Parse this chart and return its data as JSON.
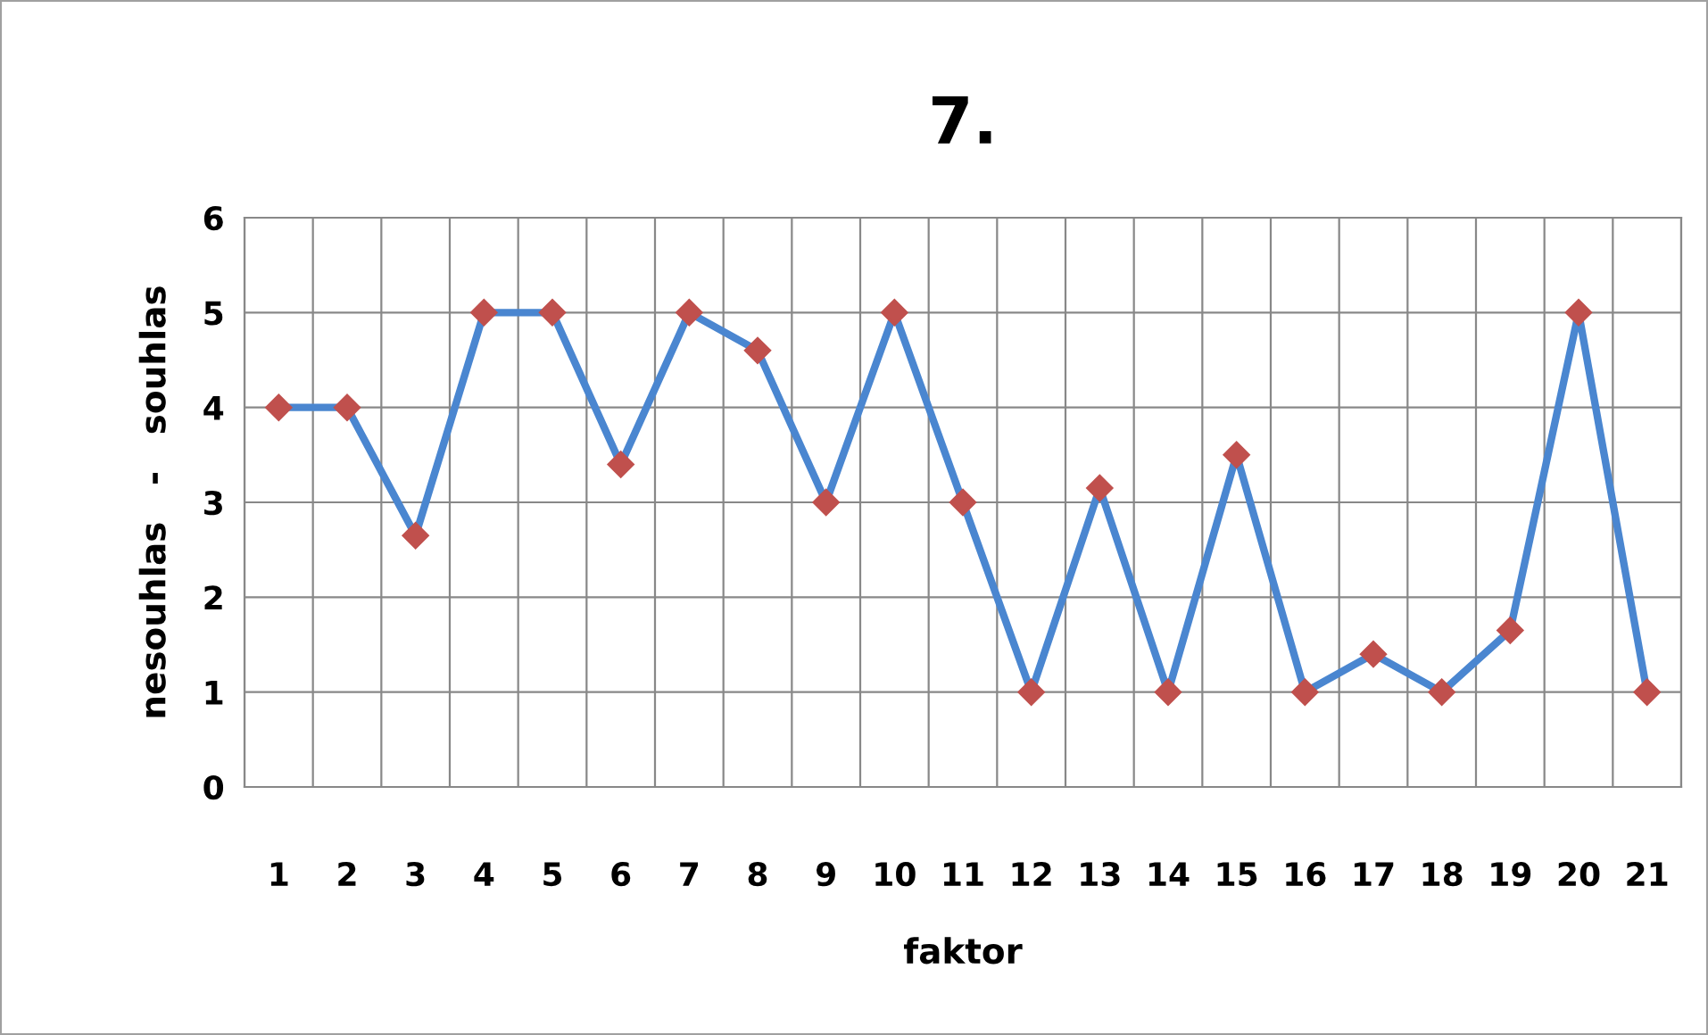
{
  "chart_data": {
    "type": "line",
    "title": "7.",
    "xlabel": "faktor",
    "ylabel": "nesouhlas   -   souhlas",
    "categories": [
      "1",
      "2",
      "3",
      "4",
      "5",
      "6",
      "7",
      "8",
      "9",
      "10",
      "11",
      "12",
      "13",
      "14",
      "15",
      "16",
      "17",
      "18",
      "19",
      "20",
      "21"
    ],
    "series": [
      {
        "color": "#4a86d0",
        "colors": [
          "#c0504d",
          "#c0504d",
          "#c0504d",
          "#c0504d",
          "#c0504d",
          "#c0504d",
          "#c0504d",
          "#c0504d",
          "#c0504d",
          "#c0504d",
          "#c0504d",
          "#c0504d",
          "#c0504d",
          "#c0504d",
          "#c0504d",
          "#c0504d",
          "#c0504d",
          "#c0504d",
          "#c0504d",
          "#c0504d",
          "#c0504d"
        ],
        "values": [
          4,
          4,
          2.65,
          5,
          5,
          3.4,
          5,
          4.6,
          3,
          5,
          3,
          1,
          3.15,
          1,
          3.5,
          1,
          1.4,
          1,
          1.65,
          5,
          1
        ]
      }
    ],
    "ylim": [
      0,
      6
    ],
    "yticks": [
      0,
      1,
      2,
      3,
      4,
      5,
      6
    ],
    "grid": true,
    "marker": "diamond",
    "line_style": "solid"
  }
}
